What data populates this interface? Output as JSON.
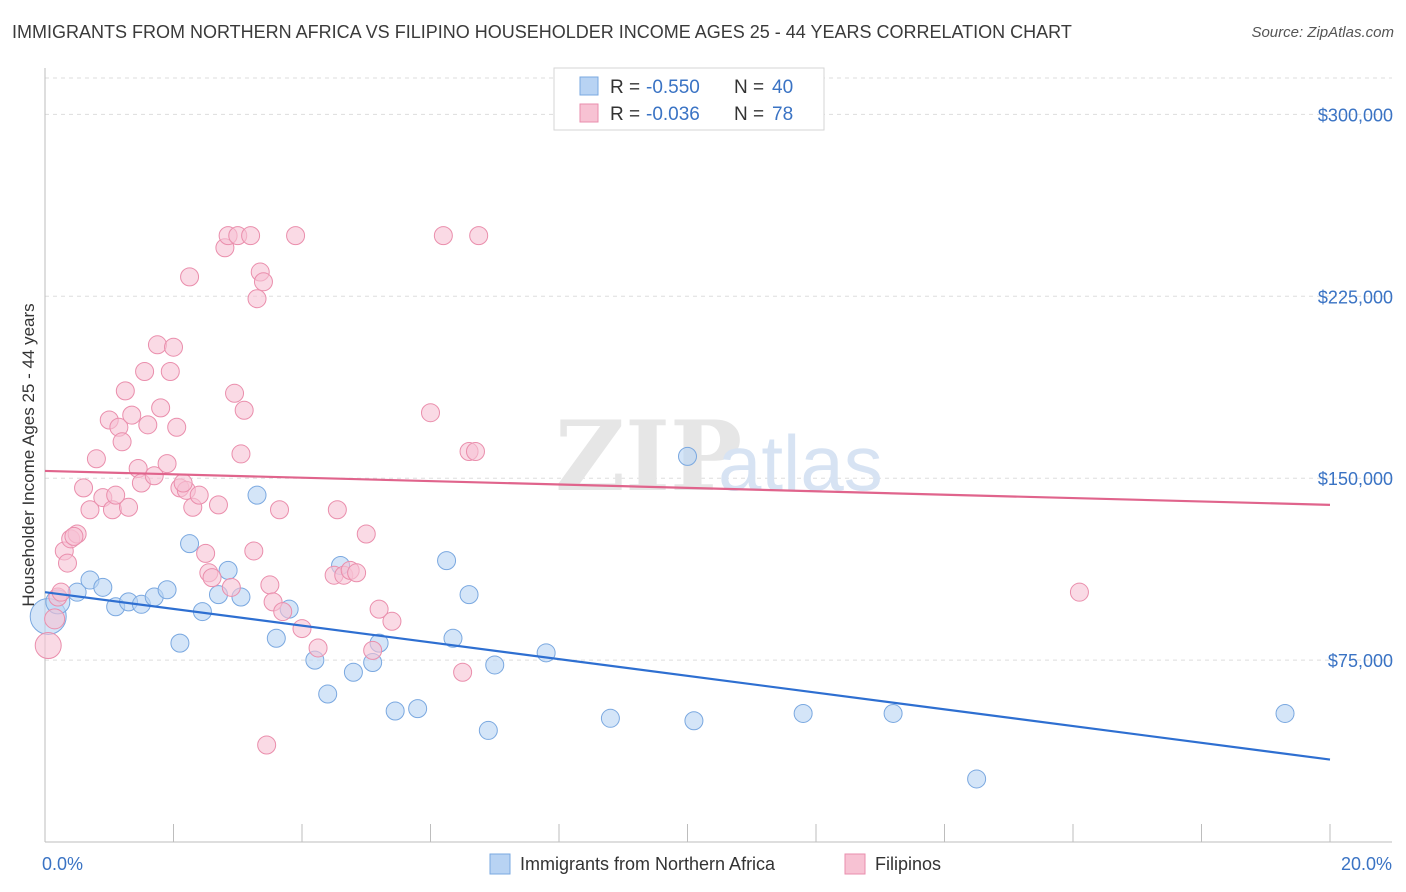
{
  "header": {
    "title": "IMMIGRANTS FROM NORTHERN AFRICA VS FILIPINO HOUSEHOLDER INCOME AGES 25 - 44 YEARS CORRELATION CHART",
    "source": "Source: ZipAtlas.com"
  },
  "watermark": {
    "zip": "ZIP",
    "atlas": "atlas"
  },
  "colors": {
    "blue_fill": "#b8d3f3",
    "blue_stroke": "#7aa8e0",
    "blue_line": "#2e6fd1",
    "pink_fill": "#f7c2d3",
    "pink_stroke": "#ea8eac",
    "pink_line": "#e0648c",
    "tick_label": "#3a73c4",
    "grid": "#dddddd"
  },
  "legend": {
    "rows": [
      {
        "r_label": "R = ",
        "r_value": "-0.550",
        "n_label": "N = ",
        "n_value": "40"
      },
      {
        "r_label": "R = ",
        "r_value": "-0.036",
        "n_label": "N = ",
        "n_value": "78"
      }
    ]
  },
  "chart_data": {
    "type": "scatter",
    "ylabel": "Householder Income Ages 25 - 44 years",
    "xlim": [
      0,
      20
    ],
    "ylim": [
      0,
      315000
    ],
    "x_tick_labels": [
      "0.0%",
      "20.0%"
    ],
    "y_ticks": [
      {
        "value": 75000,
        "label": "$75,000"
      },
      {
        "value": 150000,
        "label": "$150,000"
      },
      {
        "value": 225000,
        "label": "$225,000"
      },
      {
        "value": 300000,
        "label": "$300,000"
      }
    ],
    "grid": true,
    "legend_position": "top-center",
    "series": [
      {
        "name": "Immigrants from Northern Africa",
        "color": "blue",
        "trend": {
          "x": [
            0,
            20
          ],
          "y": [
            103000,
            34000
          ]
        },
        "points": [
          [
            0.05,
            93000,
            18
          ],
          [
            0.2,
            99000,
            12
          ],
          [
            0.5,
            103000,
            9
          ],
          [
            0.7,
            108000,
            9
          ],
          [
            0.9,
            105000,
            9
          ],
          [
            1.1,
            97000,
            9
          ],
          [
            1.3,
            99000,
            9
          ],
          [
            1.5,
            98000,
            9
          ],
          [
            1.7,
            101000,
            9
          ],
          [
            1.9,
            104000,
            9
          ],
          [
            2.1,
            82000,
            9
          ],
          [
            2.25,
            123000,
            9
          ],
          [
            2.45,
            95000,
            9
          ],
          [
            2.7,
            102000,
            9
          ],
          [
            2.85,
            112000,
            9
          ],
          [
            3.05,
            101000,
            9
          ],
          [
            3.3,
            143000,
            9
          ],
          [
            3.6,
            84000,
            9
          ],
          [
            3.8,
            96000,
            9
          ],
          [
            4.2,
            75000,
            9
          ],
          [
            4.4,
            61000,
            9
          ],
          [
            4.6,
            114000,
            9
          ],
          [
            4.8,
            70000,
            9
          ],
          [
            5.1,
            74000,
            9
          ],
          [
            5.2,
            82000,
            9
          ],
          [
            5.45,
            54000,
            9
          ],
          [
            5.8,
            55000,
            9
          ],
          [
            6.25,
            116000,
            9
          ],
          [
            6.35,
            84000,
            9
          ],
          [
            6.6,
            102000,
            9
          ],
          [
            6.9,
            46000,
            9
          ],
          [
            7.0,
            73000,
            9
          ],
          [
            7.8,
            78000,
            9
          ],
          [
            8.8,
            51000,
            9
          ],
          [
            10.0,
            159000,
            9
          ],
          [
            10.1,
            50000,
            9
          ],
          [
            11.8,
            53000,
            9
          ],
          [
            13.2,
            53000,
            9
          ],
          [
            14.5,
            26000,
            9
          ],
          [
            19.3,
            53000,
            9
          ]
        ]
      },
      {
        "name": "Filipinos",
        "color": "pink",
        "trend": {
          "x": [
            0,
            20
          ],
          "y": [
            153000,
            139000
          ]
        },
        "points": [
          [
            0.05,
            81000,
            13
          ],
          [
            0.15,
            92000,
            10
          ],
          [
            0.2,
            101000,
            9
          ],
          [
            0.3,
            120000,
            9
          ],
          [
            0.35,
            115000,
            9
          ],
          [
            0.4,
            125000,
            9
          ],
          [
            0.5,
            127000,
            9
          ],
          [
            0.6,
            146000,
            9
          ],
          [
            0.7,
            137000,
            9
          ],
          [
            0.8,
            158000,
            9
          ],
          [
            0.9,
            142000,
            9
          ],
          [
            1.0,
            174000,
            9
          ],
          [
            1.05,
            137000,
            9
          ],
          [
            1.15,
            171000,
            9
          ],
          [
            1.2,
            165000,
            9
          ],
          [
            1.25,
            186000,
            9
          ],
          [
            1.3,
            138000,
            9
          ],
          [
            1.35,
            176000,
            9
          ],
          [
            1.45,
            154000,
            9
          ],
          [
            1.5,
            148000,
            9
          ],
          [
            1.55,
            194000,
            9
          ],
          [
            1.6,
            172000,
            9
          ],
          [
            1.7,
            151000,
            9
          ],
          [
            1.75,
            205000,
            9
          ],
          [
            1.8,
            179000,
            9
          ],
          [
            1.9,
            156000,
            9
          ],
          [
            1.95,
            194000,
            9
          ],
          [
            2.0,
            204000,
            9
          ],
          [
            2.05,
            171000,
            9
          ],
          [
            2.1,
            146000,
            9
          ],
          [
            2.2,
            145000,
            9
          ],
          [
            2.25,
            233000,
            9
          ],
          [
            2.3,
            138000,
            9
          ],
          [
            2.4,
            143000,
            9
          ],
          [
            2.5,
            119000,
            9
          ],
          [
            2.55,
            111000,
            9
          ],
          [
            2.6,
            109000,
            9
          ],
          [
            2.7,
            139000,
            9
          ],
          [
            2.8,
            245000,
            9
          ],
          [
            2.85,
            250000,
            9
          ],
          [
            2.95,
            185000,
            9
          ],
          [
            3.0,
            250000,
            9
          ],
          [
            3.05,
            160000,
            9
          ],
          [
            3.1,
            178000,
            9
          ],
          [
            3.2,
            250000,
            9
          ],
          [
            3.3,
            224000,
            9
          ],
          [
            3.35,
            235000,
            9
          ],
          [
            3.4,
            231000,
            9
          ],
          [
            3.45,
            40000,
            9
          ],
          [
            3.5,
            106000,
            9
          ],
          [
            3.55,
            99000,
            9
          ],
          [
            3.65,
            137000,
            9
          ],
          [
            3.7,
            95000,
            9
          ],
          [
            3.9,
            250000,
            9
          ],
          [
            4.0,
            88000,
            9
          ],
          [
            4.25,
            80000,
            9
          ],
          [
            4.5,
            110000,
            9
          ],
          [
            4.55,
            137000,
            9
          ],
          [
            4.65,
            110000,
            9
          ],
          [
            4.75,
            112000,
            9
          ],
          [
            4.85,
            111000,
            9
          ],
          [
            5.0,
            127000,
            9
          ],
          [
            5.1,
            79000,
            9
          ],
          [
            5.2,
            96000,
            9
          ],
          [
            5.4,
            91000,
            9
          ],
          [
            6.0,
            177000,
            9
          ],
          [
            6.2,
            250000,
            9
          ],
          [
            6.5,
            70000,
            9
          ],
          [
            6.6,
            161000,
            9
          ],
          [
            6.7,
            161000,
            9
          ],
          [
            6.75,
            250000,
            9
          ],
          [
            16.1,
            103000,
            9
          ],
          [
            0.25,
            103000,
            9
          ],
          [
            0.45,
            126000,
            9
          ],
          [
            1.1,
            143000,
            9
          ],
          [
            2.15,
            148000,
            9
          ],
          [
            2.9,
            105000,
            9
          ],
          [
            3.25,
            120000,
            9
          ]
        ]
      }
    ]
  }
}
